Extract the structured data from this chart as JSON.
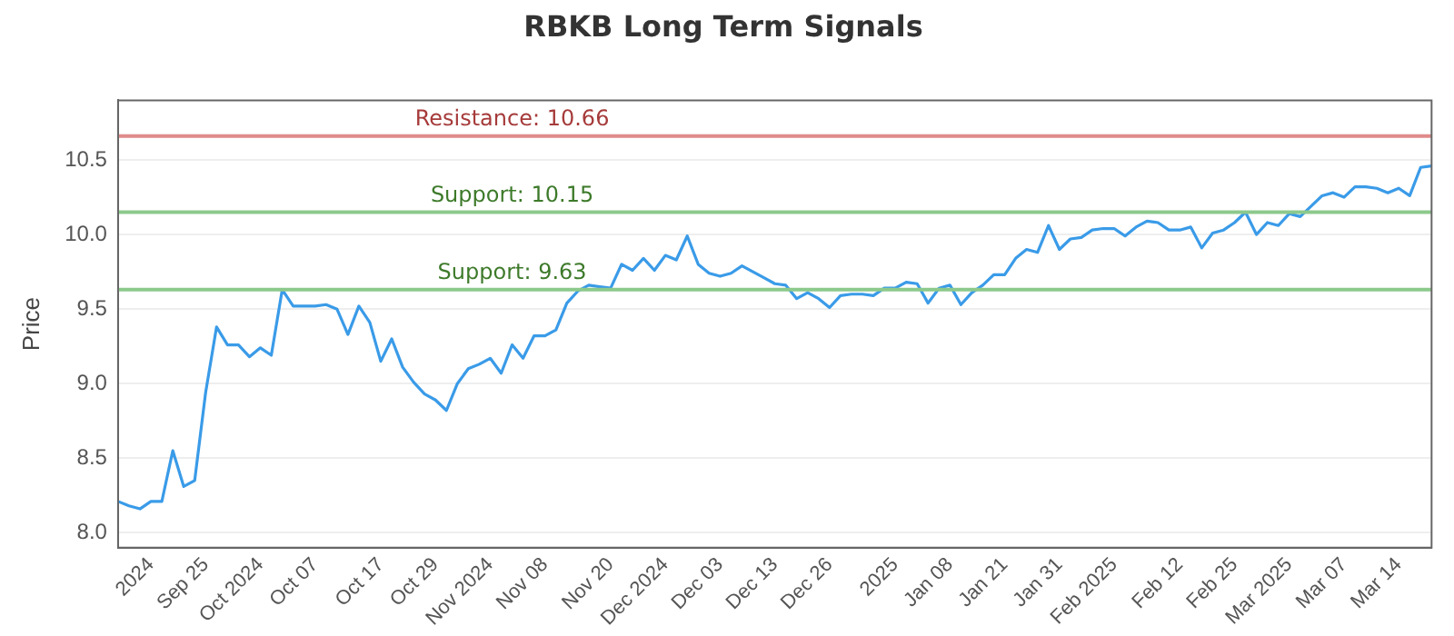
{
  "chart_data": {
    "type": "line",
    "title": "RBKB Long Term Signals",
    "ylabel": "Price",
    "categories": [
      null,
      null,
      null,
      "2024",
      null,
      null,
      null,
      null,
      "Sep 25",
      null,
      null,
      null,
      null,
      "Oct 2024",
      null,
      null,
      null,
      null,
      "Oct 07",
      null,
      null,
      null,
      null,
      null,
      "Oct 17",
      null,
      null,
      null,
      null,
      "Oct 29",
      null,
      null,
      null,
      null,
      "Nov 2024",
      null,
      null,
      null,
      null,
      "Nov 08",
      null,
      null,
      null,
      null,
      null,
      "Nov 20",
      null,
      null,
      null,
      null,
      "Dec 2024",
      null,
      null,
      null,
      null,
      "Dec 03",
      null,
      null,
      null,
      null,
      "Dec 13",
      null,
      null,
      null,
      null,
      "Dec 26",
      null,
      null,
      null,
      null,
      null,
      "2025",
      null,
      null,
      null,
      null,
      "Jan 08",
      null,
      null,
      null,
      null,
      "Jan 21",
      null,
      null,
      null,
      null,
      "Jan 31",
      null,
      null,
      null,
      null,
      "Feb 2025",
      null,
      null,
      null,
      null,
      null,
      "Feb 12",
      null,
      null,
      null,
      null,
      "Feb 25",
      null,
      null,
      null,
      null,
      "Mar 2025",
      null,
      null,
      null,
      null,
      "Mar 07",
      null,
      null,
      null,
      null,
      "Mar 14",
      null,
      null,
      null
    ],
    "series": [
      {
        "color": "#3a9be8",
        "values": [
          8.21,
          8.18,
          8.16,
          8.21,
          8.21,
          8.55,
          8.31,
          8.35,
          8.94,
          9.38,
          9.26,
          9.26,
          9.18,
          9.24,
          9.19,
          9.63,
          9.52,
          9.52,
          9.52,
          9.53,
          9.5,
          9.33,
          9.52,
          9.41,
          9.15,
          9.3,
          9.11,
          9.01,
          8.93,
          8.89,
          8.82,
          9.0,
          9.1,
          9.13,
          9.17,
          9.07,
          9.26,
          9.17,
          9.32,
          9.32,
          9.36,
          9.54,
          9.62,
          9.66,
          9.65,
          9.64,
          9.8,
          9.76,
          9.84,
          9.76,
          9.86,
          9.83,
          9.99,
          9.8,
          9.74,
          9.72,
          9.74,
          9.79,
          9.75,
          9.71,
          9.67,
          9.66,
          9.57,
          9.61,
          9.57,
          9.51,
          9.59,
          9.6,
          9.6,
          9.59,
          9.64,
          9.64,
          9.68,
          9.67,
          9.54,
          9.64,
          9.66,
          9.53,
          9.61,
          9.66,
          9.73,
          9.73,
          9.84,
          9.9,
          9.88,
          10.06,
          9.9,
          9.97,
          9.98,
          10.03,
          10.04,
          10.04,
          9.99,
          10.05,
          10.09,
          10.08,
          10.03,
          10.03,
          10.05,
          9.91,
          10.01,
          10.03,
          10.08,
          10.15,
          10.0,
          10.08,
          10.06,
          10.14,
          10.12,
          10.19,
          10.26,
          10.28,
          10.25,
          10.32,
          10.32,
          10.31,
          10.28,
          10.31,
          10.26,
          10.45,
          10.46
        ]
      }
    ],
    "ylim": [
      7.9,
      10.9
    ],
    "yticks": [
      {
        "value": 8,
        "label": "8.0"
      },
      {
        "value": 8.5,
        "label": "8.5"
      },
      {
        "value": 9,
        "label": "9.0"
      },
      {
        "value": 9.5,
        "label": "9.5"
      },
      {
        "value": 10,
        "label": "10.0"
      },
      {
        "value": 10.5,
        "label": "10.5"
      }
    ],
    "ref_lines": [
      {
        "axis": "y",
        "value": 10.66,
        "label": "Resistance: 10.66",
        "color": "#e08a8a"
      },
      {
        "axis": "y",
        "value": 10.15,
        "label": "Support: 10.15",
        "color": "#8cc98c"
      },
      {
        "axis": "y",
        "value": 9.63,
        "label": "Support: 9.63",
        "color": "#8cc98c"
      }
    ],
    "grid": "y",
    "legend": false,
    "marker": "none",
    "line_style": "solid"
  }
}
